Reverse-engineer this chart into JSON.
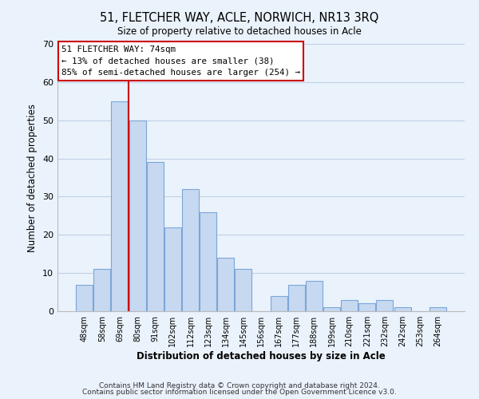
{
  "title": "51, FLETCHER WAY, ACLE, NORWICH, NR13 3RQ",
  "subtitle": "Size of property relative to detached houses in Acle",
  "xlabel": "Distribution of detached houses by size in Acle",
  "ylabel": "Number of detached properties",
  "bar_labels": [
    "48sqm",
    "58sqm",
    "69sqm",
    "80sqm",
    "91sqm",
    "102sqm",
    "112sqm",
    "123sqm",
    "134sqm",
    "145sqm",
    "156sqm",
    "167sqm",
    "177sqm",
    "188sqm",
    "199sqm",
    "210sqm",
    "221sqm",
    "232sqm",
    "242sqm",
    "253sqm",
    "264sqm"
  ],
  "bar_values": [
    7,
    11,
    55,
    50,
    39,
    22,
    32,
    26,
    14,
    11,
    0,
    4,
    7,
    8,
    1,
    3,
    2,
    3,
    1,
    0,
    1
  ],
  "bar_color": "#c6d9f0",
  "bar_edge_color": "#7ca6d8",
  "grid_color": "#c0d0e8",
  "background_color": "#eaf2fb",
  "vline_color": "#cc0000",
  "ylim": [
    0,
    70
  ],
  "yticks": [
    0,
    10,
    20,
    30,
    40,
    50,
    60,
    70
  ],
  "annotation_line1": "51 FLETCHER WAY: 74sqm",
  "annotation_line2": "← 13% of detached houses are smaller (38)",
  "annotation_line3": "85% of semi-detached houses are larger (254) →",
  "footer_line1": "Contains HM Land Registry data © Crown copyright and database right 2024.",
  "footer_line2": "Contains public sector information licensed under the Open Government Licence v3.0."
}
